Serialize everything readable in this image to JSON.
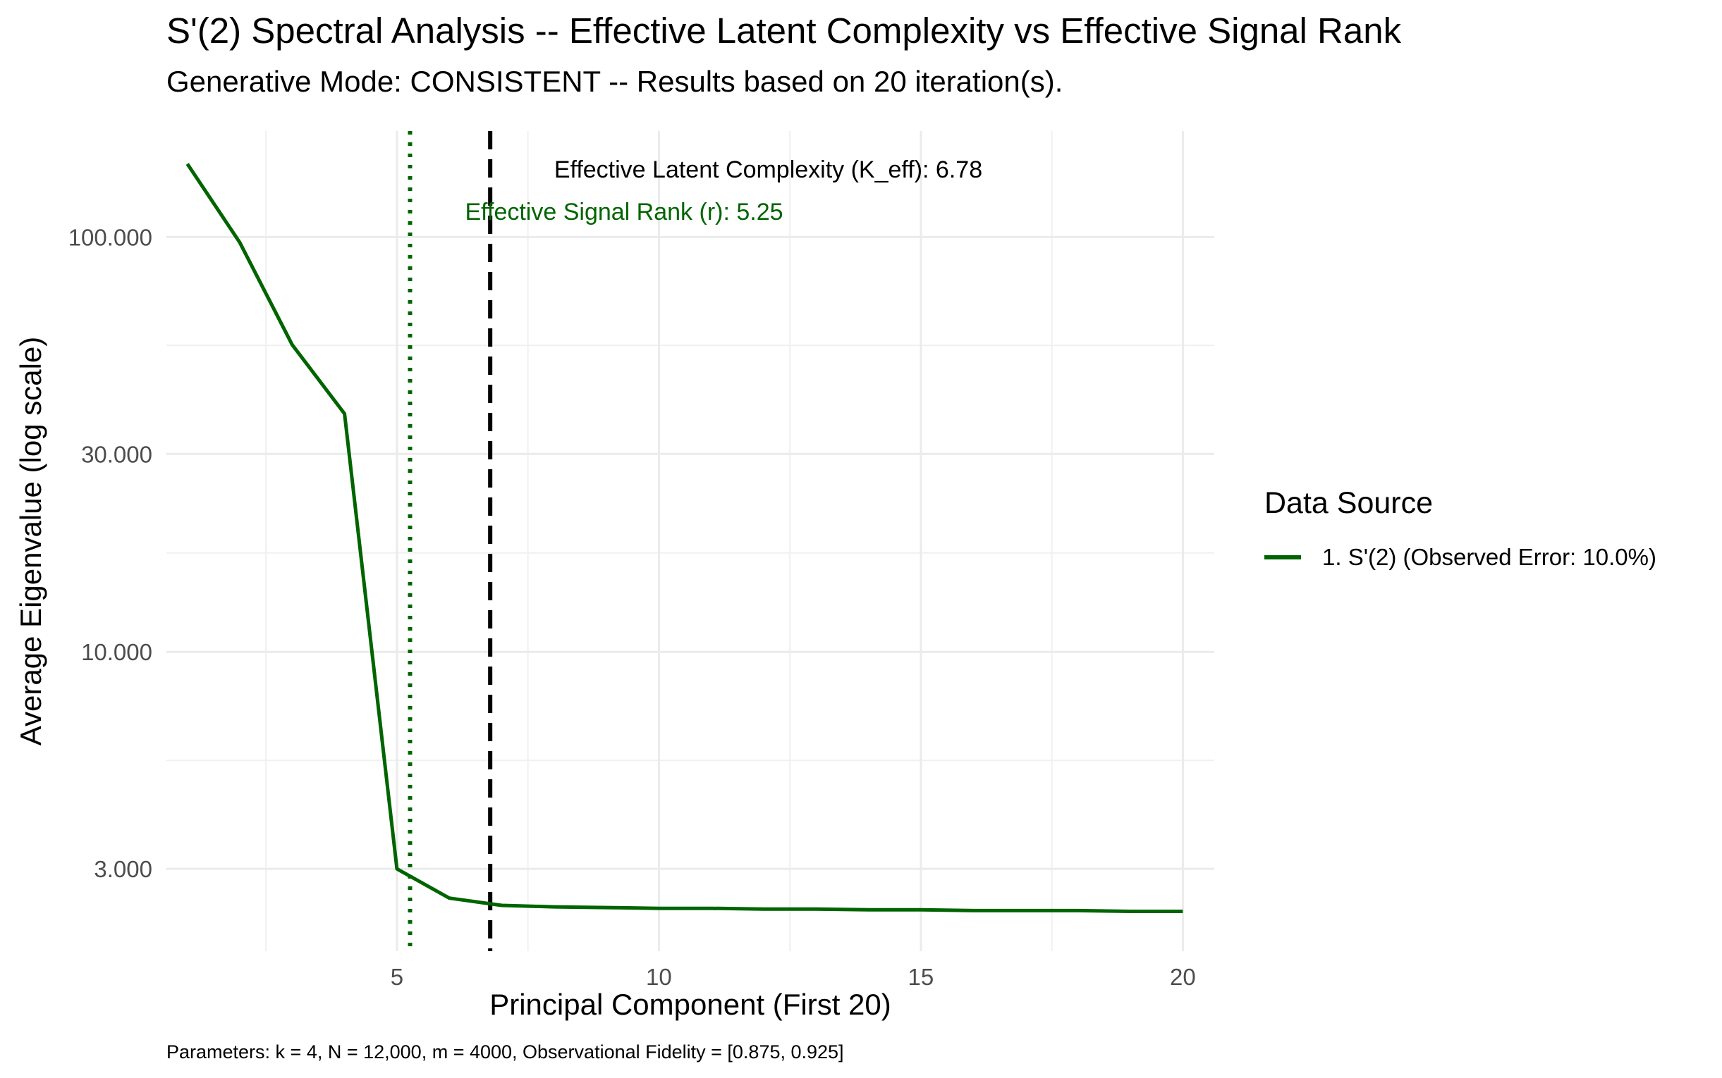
{
  "chart_data": {
    "type": "line",
    "title": "S'(2) Spectral Analysis -- Effective Latent Complexity vs Effective Signal Rank",
    "subtitle": "Generative Mode: CONSISTENT -- Results based on 20 iteration(s).",
    "caption": "Parameters: k = 4, N = 12,000, m = 4000, Observational Fidelity = [0.875, 0.925]",
    "xlabel": "Principal Component (First 20)",
    "ylabel": "Average Eigenvalue (log scale)",
    "y_scale": "log",
    "xlim": [
      0.6,
      20.6
    ],
    "ylim": [
      1.9,
      180
    ],
    "x_ticks": [
      5,
      10,
      15,
      20
    ],
    "x_tick_labels": [
      "5",
      "10",
      "15",
      "20"
    ],
    "y_ticks": [
      3,
      10,
      30,
      100
    ],
    "y_tick_labels": [
      "3.000",
      "10.000",
      "30.000",
      "100.000"
    ],
    "grid": true,
    "series": [
      {
        "name": "1. S'(2) (Observed Error: 10.0%)",
        "color": "#006400",
        "x": [
          1,
          2,
          3,
          4,
          5,
          6,
          7,
          8,
          9,
          10,
          11,
          12,
          13,
          14,
          15,
          16,
          17,
          18,
          19,
          20
        ],
        "values": [
          150,
          97,
          55,
          37.5,
          3.0,
          2.55,
          2.45,
          2.43,
          2.42,
          2.41,
          2.41,
          2.4,
          2.4,
          2.39,
          2.39,
          2.38,
          2.38,
          2.38,
          2.37,
          2.37
        ]
      }
    ],
    "vlines": [
      {
        "name": "effective-signal-rank",
        "x": 5.25,
        "style": "dotted",
        "color": "#006400"
      },
      {
        "name": "effective-latent-complexity",
        "x": 6.78,
        "style": "dashed",
        "color": "#000000"
      }
    ],
    "annotations": [
      {
        "text": "Effective Latent Complexity (K_eff): 6.78",
        "x": 8.0,
        "y": 139,
        "color": "#000000"
      },
      {
        "text": "Effective Signal Rank (r): 5.25",
        "x": 6.3,
        "y": 110,
        "color": "#006400"
      }
    ],
    "legend": {
      "title": "Data Source",
      "position": "right",
      "items": [
        "1. S'(2) (Observed Error: 10.0%)"
      ]
    }
  }
}
